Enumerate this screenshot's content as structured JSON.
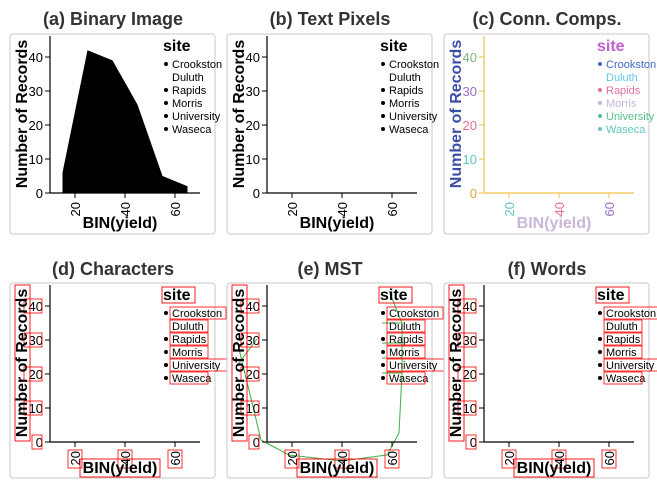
{
  "chart_data": [
    {
      "type": "area",
      "title": "(a) Binary Image",
      "variant": "binary",
      "xlabel": "BIN(yield)",
      "ylabel": "Number of Records",
      "xticks": [
        20,
        40,
        60
      ],
      "yticks": [
        0,
        10,
        20,
        30,
        40
      ],
      "xlim": [
        10,
        70
      ],
      "ylim": [
        0,
        45
      ],
      "x": [
        15,
        25,
        35,
        45,
        55,
        65
      ],
      "values": [
        6,
        42,
        39,
        26,
        5,
        2
      ],
      "legend_title": "site",
      "legend": [
        "Crookston",
        "Duluth",
        "Rapids",
        "Morris",
        "University",
        "Waseca"
      ],
      "legend_position": "top-right"
    },
    {
      "type": "area",
      "title": "(b) Text Pixels",
      "variant": "text",
      "xlabel": "BIN(yield)",
      "ylabel": "Number of Records",
      "xticks": [
        20,
        40,
        60
      ],
      "yticks": [
        0,
        10,
        20,
        30,
        40
      ],
      "xlim": [
        10,
        70
      ],
      "ylim": [
        0,
        45
      ],
      "legend_title": "site",
      "legend": [
        "Crookston",
        "Duluth",
        "Rapids",
        "Morris",
        "University",
        "Waseca"
      ],
      "legend_position": "top-right"
    },
    {
      "type": "area",
      "title": "(c) Conn. Comps.",
      "variant": "components",
      "xlabel": "BIN(yield)",
      "ylabel": "Number of Records",
      "xticks": [
        20,
        40,
        60
      ],
      "yticks": [
        0,
        10,
        20,
        30,
        40
      ],
      "xlim": [
        10,
        70
      ],
      "ylim": [
        0,
        45
      ],
      "legend_title": "site",
      "legend": [
        "Crookston",
        "Duluth",
        "Rapids",
        "Morris",
        "University",
        "Waseca"
      ],
      "legend_position": "top-right",
      "colors": {
        "axis": "#f0c24a",
        "ylabel": "#3a4ea8",
        "xlabel": "#c9b5d8",
        "ticks": [
          "#d2a93c",
          "#63c7c0",
          "#e46f9a",
          "#9c6cc7",
          "#7cb87a"
        ],
        "legend_title": "#c05fd0",
        "legend": [
          "#3b6bc8",
          "#66c7e6",
          "#e46f9a",
          "#c9b5d8",
          "#58c08c",
          "#63c7c0"
        ]
      }
    },
    {
      "type": "area",
      "title": "(d) Characters",
      "variant": "characters",
      "xlabel": "BIN(yield)",
      "ylabel": "Number of Records",
      "xticks": [
        20,
        40,
        60
      ],
      "yticks": [
        0,
        10,
        20,
        30,
        40
      ],
      "xlim": [
        10,
        70
      ],
      "ylim": [
        0,
        45
      ],
      "legend_title": "site",
      "legend": [
        "Crookston",
        "Duluth",
        "Rapids",
        "Morris",
        "University",
        "Waseca"
      ],
      "legend_position": "top-right"
    },
    {
      "type": "area",
      "title": "(e) MST",
      "variant": "mst",
      "xlabel": "BIN(yield)",
      "ylabel": "Number of Records",
      "xticks": [
        20,
        40,
        60
      ],
      "yticks": [
        0,
        10,
        20,
        30,
        40
      ],
      "xlim": [
        10,
        70
      ],
      "ylim": [
        0,
        45
      ],
      "legend_title": "site",
      "legend": [
        "Crookston",
        "Duluth",
        "Rapids",
        "Morris",
        "University",
        "Waseca"
      ],
      "legend_position": "top-right"
    },
    {
      "type": "area",
      "title": "(f) Words",
      "variant": "words",
      "xlabel": "BIN(yield)",
      "ylabel": "Number of Records",
      "xticks": [
        20,
        40,
        60
      ],
      "yticks": [
        0,
        10,
        20,
        30,
        40
      ],
      "xlim": [
        10,
        70
      ],
      "ylim": [
        0,
        45
      ],
      "legend_title": "site",
      "legend": [
        "Crookston",
        "Duluth",
        "Rapids",
        "Morris",
        "University",
        "Waseca"
      ],
      "legend_position": "top-right"
    }
  ],
  "style": {
    "box_border": "#c8c8c8",
    "char_box": "#ff0000",
    "char_fill": "#ffe0e0",
    "mst_edge": "#3cb043",
    "text": "#000000"
  }
}
